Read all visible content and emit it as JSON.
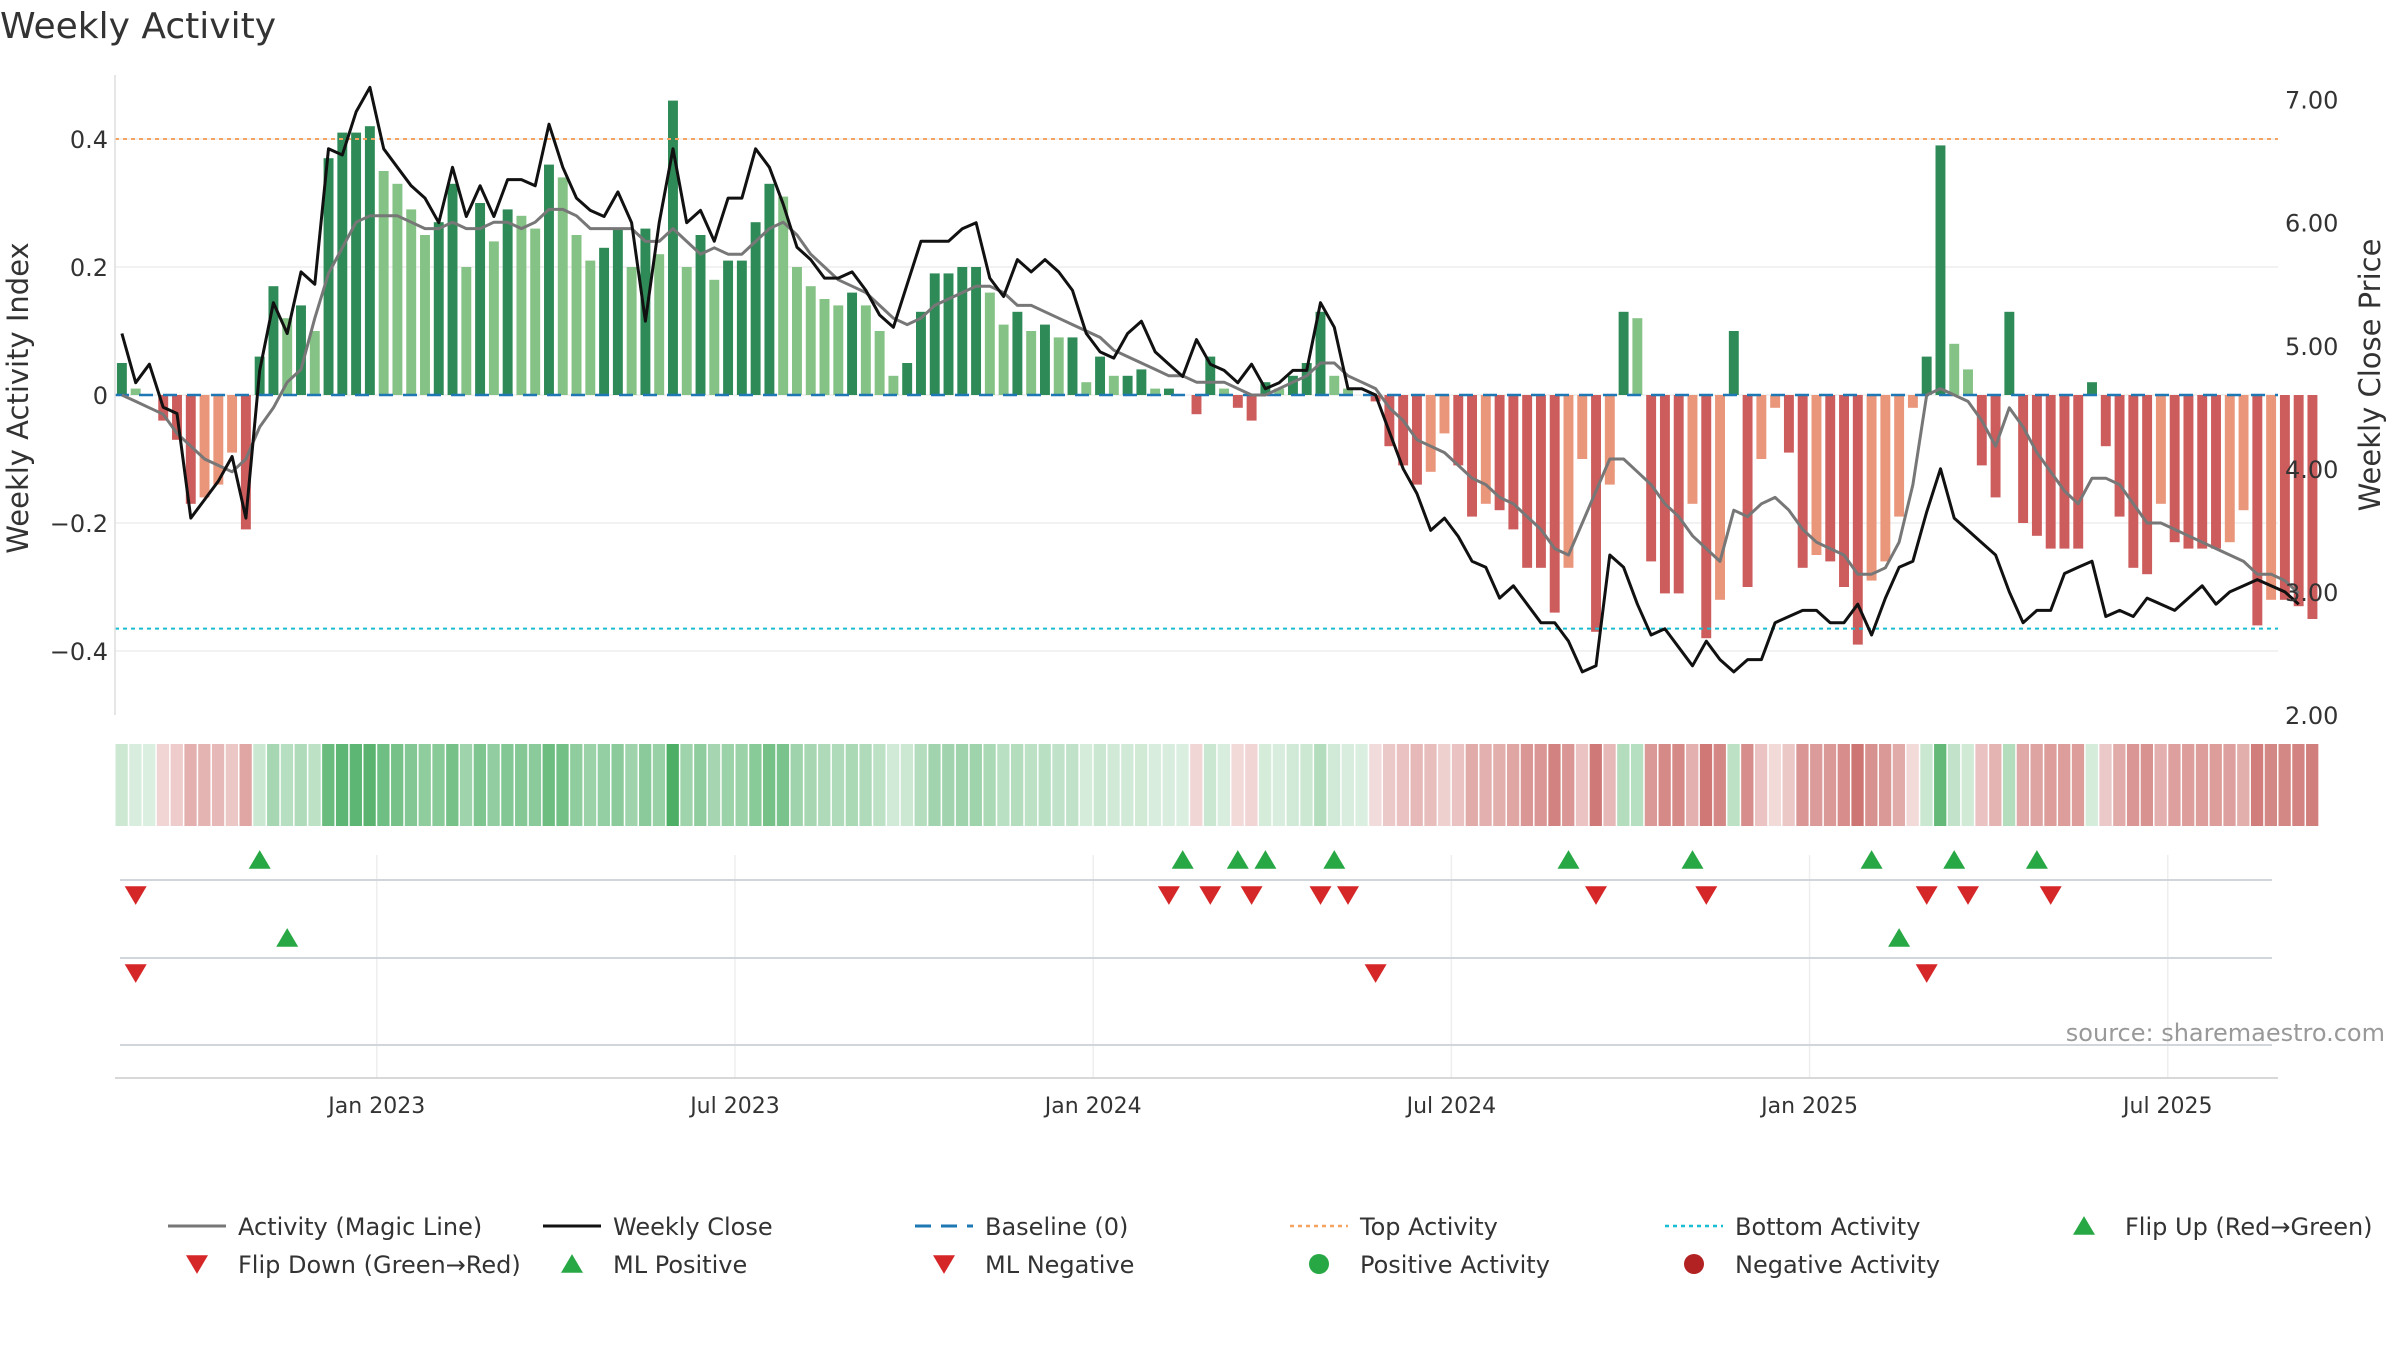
{
  "chart_data": {
    "type": "bar",
    "title": "Weekly Activity",
    "ylabel": "Weekly Activity Index",
    "y2label": "Weekly Close Price",
    "ylim": [
      -0.5,
      0.5
    ],
    "y2lim": [
      2.0,
      7.2
    ],
    "yticks": [
      {
        "value": 0.4,
        "label": "0.4"
      },
      {
        "value": 0.2,
        "label": "0.2"
      },
      {
        "value": 0,
        "label": "0"
      },
      {
        "value": -0.2,
        "label": "−0.2"
      },
      {
        "value": -0.4,
        "label": "−0.4"
      }
    ],
    "y2ticks": [
      {
        "value": 7.0,
        "label": "7.00"
      },
      {
        "value": 6.0,
        "label": "6.00"
      },
      {
        "value": 5.0,
        "label": "5.00"
      },
      {
        "value": 4.0,
        "label": "4.00"
      },
      {
        "value": 3.0,
        "label": "3.00"
      },
      {
        "value": 2.0,
        "label": "2.00"
      }
    ],
    "xticks": [
      {
        "week": 19,
        "label": "Jan 2023"
      },
      {
        "week": 45,
        "label": "Jul 2023"
      },
      {
        "week": 71,
        "label": "Jan 2024"
      },
      {
        "week": 97,
        "label": "Jul 2024"
      },
      {
        "week": 123,
        "label": "Jan 2025"
      },
      {
        "week": 149,
        "label": "Jul 2025"
      }
    ],
    "weeks": 157,
    "top_activity": 0.4,
    "bottom_activity": -0.365,
    "baseline": 0,
    "activity": [
      0.05,
      0.01,
      0.0,
      -0.04,
      -0.07,
      -0.17,
      -0.16,
      -0.14,
      -0.09,
      -0.21,
      0.06,
      0.17,
      0.12,
      0.14,
      0.1,
      0.37,
      0.41,
      0.41,
      0.42,
      0.35,
      0.33,
      0.29,
      0.25,
      0.27,
      0.33,
      0.2,
      0.3,
      0.24,
      0.29,
      0.28,
      0.26,
      0.36,
      0.34,
      0.25,
      0.21,
      0.23,
      0.26,
      0.2,
      0.26,
      0.22,
      0.46,
      0.2,
      0.25,
      0.18,
      0.21,
      0.21,
      0.27,
      0.33,
      0.31,
      0.2,
      0.17,
      0.15,
      0.14,
      0.16,
      0.14,
      0.1,
      0.03,
      0.05,
      0.13,
      0.19,
      0.19,
      0.2,
      0.2,
      0.16,
      0.11,
      0.13,
      0.1,
      0.11,
      0.09,
      0.09,
      0.02,
      0.06,
      0.03,
      0.03,
      0.04,
      0.01,
      0.01,
      0.0,
      -0.03,
      0.06,
      0.01,
      -0.02,
      -0.04,
      0.02,
      0.01,
      0.03,
      0.05,
      0.13,
      0.03,
      0.01,
      0.0,
      -0.01,
      -0.08,
      -0.11,
      -0.14,
      -0.12,
      -0.06,
      -0.11,
      -0.19,
      -0.17,
      -0.18,
      -0.21,
      -0.27,
      -0.27,
      -0.34,
      -0.27,
      -0.1,
      -0.37,
      -0.14,
      0.13,
      0.12,
      -0.26,
      -0.31,
      -0.31,
      -0.17,
      -0.38,
      -0.32,
      0.1,
      -0.3,
      -0.1,
      -0.02,
      -0.09,
      -0.27,
      -0.25,
      -0.26,
      -0.3,
      -0.39,
      -0.29,
      -0.26,
      -0.19,
      -0.02,
      0.06,
      0.39,
      0.08,
      0.04,
      -0.11,
      -0.16,
      0.13,
      -0.2,
      -0.22,
      -0.24,
      -0.24,
      -0.24,
      0.02,
      -0.08,
      -0.19,
      -0.27,
      -0.28,
      -0.17,
      -0.23,
      -0.24,
      -0.24,
      -0.24,
      -0.23,
      -0.18,
      -0.36,
      -0.32,
      -0.32,
      -0.33,
      -0.35
    ],
    "magic_line": [
      0.0,
      -0.01,
      -0.02,
      -0.03,
      -0.06,
      -0.08,
      -0.1,
      -0.11,
      -0.12,
      -0.1,
      -0.05,
      -0.02,
      0.02,
      0.04,
      0.12,
      0.19,
      0.23,
      0.27,
      0.28,
      0.28,
      0.28,
      0.27,
      0.26,
      0.26,
      0.27,
      0.26,
      0.26,
      0.27,
      0.27,
      0.26,
      0.27,
      0.29,
      0.29,
      0.28,
      0.26,
      0.26,
      0.26,
      0.26,
      0.24,
      0.24,
      0.26,
      0.24,
      0.22,
      0.23,
      0.22,
      0.22,
      0.24,
      0.26,
      0.27,
      0.25,
      0.22,
      0.2,
      0.18,
      0.17,
      0.16,
      0.14,
      0.12,
      0.11,
      0.12,
      0.14,
      0.15,
      0.16,
      0.17,
      0.17,
      0.16,
      0.14,
      0.14,
      0.13,
      0.12,
      0.11,
      0.1,
      0.09,
      0.07,
      0.06,
      0.05,
      0.04,
      0.03,
      0.03,
      0.02,
      0.02,
      0.02,
      0.01,
      0.0,
      0.0,
      0.01,
      0.02,
      0.03,
      0.05,
      0.05,
      0.03,
      0.02,
      0.01,
      -0.02,
      -0.04,
      -0.07,
      -0.08,
      -0.09,
      -0.11,
      -0.13,
      -0.14,
      -0.16,
      -0.17,
      -0.19,
      -0.21,
      -0.24,
      -0.25,
      -0.2,
      -0.15,
      -0.1,
      -0.1,
      -0.12,
      -0.14,
      -0.17,
      -0.19,
      -0.22,
      -0.24,
      -0.26,
      -0.18,
      -0.19,
      -0.17,
      -0.16,
      -0.18,
      -0.21,
      -0.23,
      -0.24,
      -0.25,
      -0.28,
      -0.28,
      -0.27,
      -0.23,
      -0.14,
      0.0,
      0.01,
      0.0,
      -0.01,
      -0.04,
      -0.08,
      -0.02,
      -0.05,
      -0.09,
      -0.12,
      -0.15,
      -0.17,
      -0.13,
      -0.13,
      -0.14,
      -0.17,
      -0.2,
      -0.2,
      -0.21,
      -0.22,
      -0.23,
      -0.24,
      -0.25,
      -0.26,
      -0.28,
      -0.28,
      -0.29,
      -0.31
    ],
    "weekly_close": [
      5.1,
      4.7,
      4.85,
      4.5,
      4.45,
      3.6,
      3.75,
      3.9,
      4.1,
      3.6,
      4.8,
      5.35,
      5.1,
      5.6,
      5.5,
      6.6,
      6.55,
      6.9,
      7.1,
      6.6,
      6.45,
      6.3,
      6.2,
      6.0,
      6.45,
      6.05,
      6.3,
      6.05,
      6.35,
      6.35,
      6.3,
      6.8,
      6.45,
      6.2,
      6.1,
      6.05,
      6.25,
      6.0,
      5.2,
      6.0,
      6.6,
      6.0,
      6.1,
      5.85,
      6.2,
      6.2,
      6.6,
      6.45,
      6.15,
      5.8,
      5.7,
      5.55,
      5.55,
      5.6,
      5.45,
      5.25,
      5.15,
      5.5,
      5.85,
      5.85,
      5.85,
      5.95,
      6.0,
      5.55,
      5.4,
      5.7,
      5.6,
      5.7,
      5.6,
      5.45,
      5.1,
      4.95,
      4.9,
      5.1,
      5.2,
      4.95,
      4.85,
      4.75,
      5.05,
      4.85,
      4.8,
      4.7,
      4.85,
      4.65,
      4.7,
      4.8,
      4.8,
      5.35,
      5.15,
      4.65,
      4.65,
      4.6,
      4.3,
      4.0,
      3.8,
      3.5,
      3.6,
      3.45,
      3.25,
      3.2,
      2.95,
      3.05,
      2.9,
      2.75,
      2.75,
      2.6,
      2.35,
      2.4,
      3.3,
      3.2,
      2.9,
      2.65,
      2.7,
      2.55,
      2.4,
      2.6,
      2.45,
      2.35,
      2.45,
      2.45,
      2.75,
      2.8,
      2.85,
      2.85,
      2.75,
      2.75,
      2.9,
      2.65,
      2.95,
      3.2,
      3.25,
      3.65,
      4.0,
      3.6,
      3.5,
      3.4,
      3.3,
      3.0,
      2.75,
      2.85,
      2.85,
      3.15,
      3.2,
      3.25,
      2.8,
      2.85,
      2.8,
      2.95,
      2.9,
      2.85,
      2.95,
      3.05,
      2.9,
      3.0,
      3.05,
      3.1,
      3.05,
      3.0,
      2.9
    ],
    "flip_up": [
      10,
      77,
      81,
      83,
      88,
      105,
      114,
      127,
      133,
      139
    ],
    "flip_down": [
      1,
      76,
      79,
      82,
      87,
      89,
      107,
      115,
      131,
      134,
      140
    ],
    "ml_positive": [
      12,
      129
    ],
    "ml_negative": [
      1,
      91,
      131
    ],
    "watermark": "source: sharemaestro.com",
    "legend": [
      {
        "label": "Activity (Magic Line)",
        "symbol": "line",
        "color": "#777777"
      },
      {
        "label": "Weekly Close",
        "symbol": "line",
        "color": "#111111"
      },
      {
        "label": "Baseline (0)",
        "symbol": "dash",
        "color": "#1f77b4"
      },
      {
        "label": "Top Activity",
        "symbol": "dot-line",
        "color": "#f4a460"
      },
      {
        "label": "Bottom Activity",
        "symbol": "dot-line",
        "color": "#17becf"
      },
      {
        "label": "Flip Up (Red→Green)",
        "symbol": "triangle-up",
        "color": "#28a745"
      },
      {
        "label": "Flip Down (Green→Red)",
        "symbol": "triangle-down",
        "color": "#d62728"
      },
      {
        "label": "ML Positive",
        "symbol": "triangle-up",
        "color": "#28a745"
      },
      {
        "label": "ML Negative",
        "symbol": "triangle-down",
        "color": "#d62728"
      },
      {
        "label": "Positive Activity",
        "symbol": "circle",
        "color": "#28a745"
      },
      {
        "label": "Negative Activity",
        "symbol": "circle",
        "color": "#b22222"
      }
    ],
    "colors": {
      "pos_strong": "#2e8b57",
      "pos_light": "#85c285",
      "neg_strong": "#cd5c5c",
      "neg_light": "#e9967a",
      "heat_pos": "#3aa655",
      "heat_neg": "#c0504d"
    }
  }
}
